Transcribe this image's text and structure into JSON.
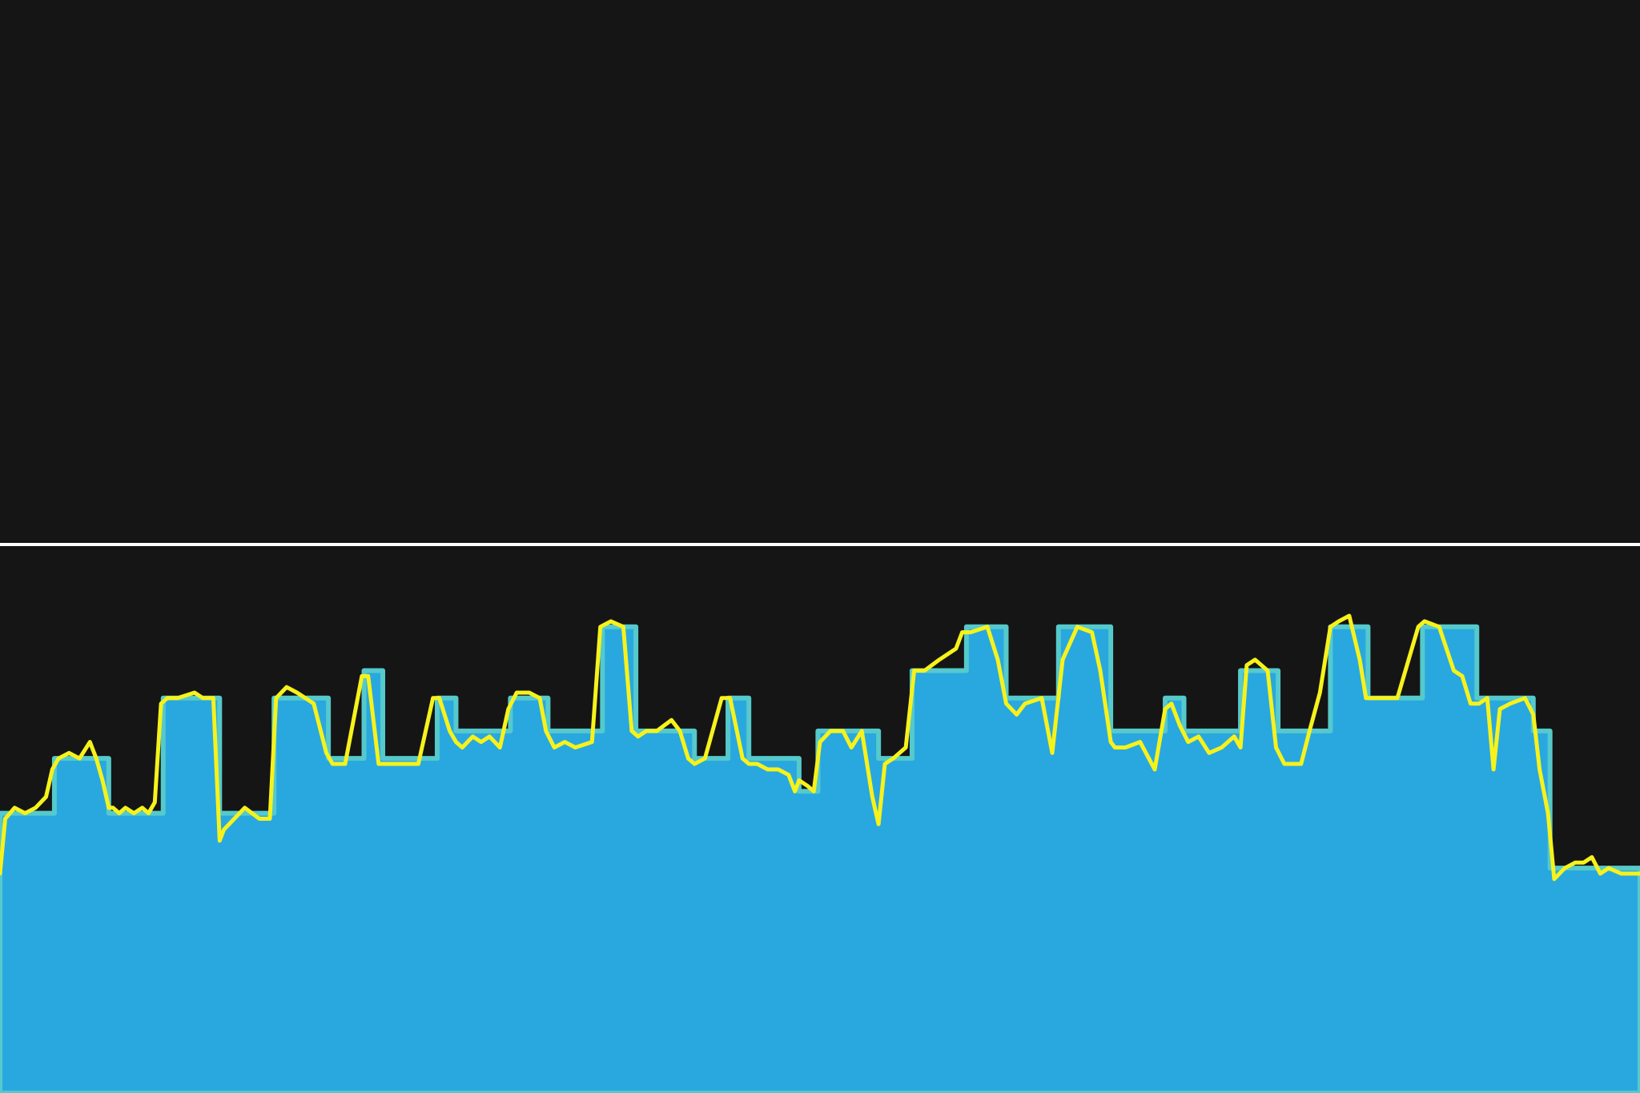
{
  "colors": {
    "background": "#151515",
    "target_fill": "#29a8df",
    "target_edge": "#55c9cc",
    "actual_line": "#f7f21b",
    "reference_line": "#ffffff"
  },
  "chart_data": {
    "type": "area",
    "title": "",
    "xlabel": "",
    "ylabel": "",
    "grid": false,
    "legend": "none",
    "xlim": [
      0,
      1568
    ],
    "ylim": [
      0,
      100
    ],
    "reference_value": 100,
    "series": [
      {
        "kind": "step-area",
        "x": [
          0,
          52,
          104,
          156,
          210,
          262,
          314,
          348,
          366,
          418,
          436,
          488,
          524,
          576,
          608,
          664,
          696,
          716,
          764,
          782,
          840,
          872,
          924,
          962,
          1012,
          1062,
          1114,
          1132,
          1186,
          1222,
          1272,
          1308,
          1360,
          1412,
          1466,
          1482,
          1568
        ],
        "values": [
          51,
          61,
          51,
          72,
          51,
          72,
          61,
          77,
          61,
          72,
          66,
          72,
          66,
          85,
          66,
          61,
          72,
          61,
          55,
          66,
          61,
          77,
          85,
          72,
          85,
          66,
          72,
          66,
          77,
          66,
          85,
          72,
          85,
          72,
          66,
          41,
          41
        ]
      },
      {
        "kind": "line",
        "x": [
          0,
          5,
          14,
          24,
          34,
          44,
          50,
          56,
          66,
          76,
          86,
          92,
          98,
          104,
          108,
          114,
          120,
          128,
          136,
          142,
          148,
          154,
          160,
          170,
          186,
          194,
          204,
          210,
          214,
          224,
          234,
          248,
          258,
          264,
          274,
          284,
          300,
          312,
          318,
          330,
          346,
          352,
          362,
          366,
          374,
          384,
          400,
          414,
          420,
          430,
          436,
          442,
          452,
          460,
          468,
          478,
          486,
          494,
          506,
          516,
          522,
          530,
          540,
          550,
          566,
          574,
          584,
          596,
          604,
          610,
          618,
          628,
          642,
          650,
          658,
          664,
          674,
          690,
          698,
          710,
          716,
          724,
          734,
          744,
          754,
          760,
          764,
          772,
          778,
          784,
          794,
          806,
          814,
          824,
          834,
          840,
          846,
          854,
          866,
          874,
          884,
          898,
          914,
          920,
          928,
          944,
          954,
          962,
          972,
          980,
          996,
          1006,
          1016,
          1030,
          1044,
          1052,
          1062,
          1066,
          1076,
          1090,
          1104,
          1114,
          1120,
          1128,
          1136,
          1146,
          1156,
          1168,
          1180,
          1186,
          1192,
          1200,
          1212,
          1220,
          1228,
          1244,
          1252,
          1262,
          1272,
          1280,
          1290,
          1300,
          1306,
          1312,
          1324,
          1336,
          1356,
          1362,
          1376,
          1390,
          1398,
          1406,
          1414,
          1422,
          1428,
          1434,
          1444,
          1458,
          1466,
          1472,
          1480,
          1486,
          1496,
          1506,
          1514,
          1522,
          1530,
          1538,
          1550,
          1568
        ],
        "values": [
          40,
          50,
          52,
          51,
          52,
          54,
          59,
          61,
          62,
          61,
          64,
          61,
          57,
          52,
          52,
          51,
          52,
          51,
          52,
          51,
          53,
          71,
          72,
          72,
          73,
          72,
          72,
          46,
          48,
          50,
          52,
          50,
          50,
          72,
          74,
          73,
          71,
          62,
          60,
          60,
          76,
          76,
          60,
          60,
          60,
          60,
          60,
          72,
          72,
          66,
          64,
          63,
          65,
          64,
          65,
          63,
          70,
          73,
          73,
          72,
          66,
          63,
          64,
          63,
          64,
          85,
          86,
          85,
          66,
          65,
          66,
          66,
          68,
          66,
          61,
          60,
          61,
          72,
          72,
          61,
          60,
          60,
          59,
          59,
          58,
          55,
          57,
          56,
          55,
          64,
          66,
          66,
          63,
          66,
          54,
          49,
          60,
          61,
          63,
          77,
          77,
          79,
          81,
          84,
          84,
          85,
          79,
          71,
          69,
          71,
          72,
          62,
          79,
          85,
          84,
          77,
          64,
          63,
          63,
          64,
          59,
          70,
          71,
          67,
          64,
          65,
          62,
          63,
          65,
          63,
          78,
          79,
          77,
          63,
          60,
          60,
          66,
          73,
          85,
          86,
          87,
          79,
          72,
          72,
          72,
          72,
          85,
          86,
          85,
          77,
          76,
          71,
          71,
          72,
          59,
          70,
          71,
          72,
          69,
          59,
          51,
          39,
          41,
          42,
          42,
          43,
          40,
          41,
          40,
          40
        ]
      }
    ]
  }
}
